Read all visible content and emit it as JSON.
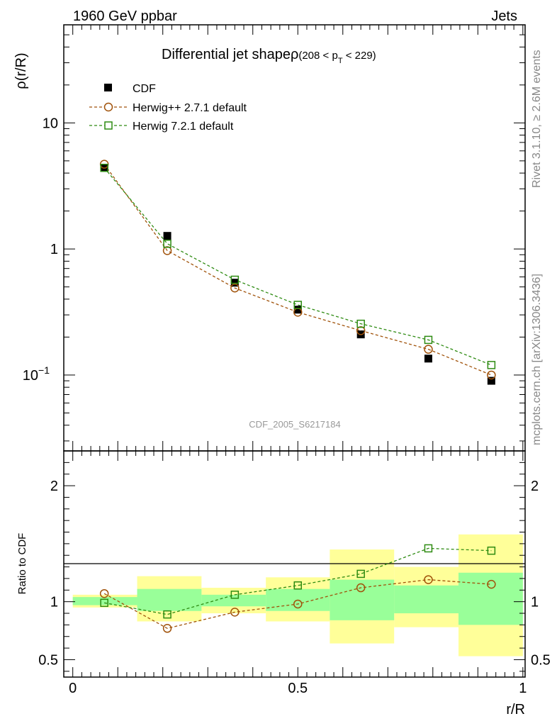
{
  "header": {
    "left": "1960 GeV ppbar",
    "right": "Jets"
  },
  "side_labels": {
    "rivet": "Rivet 3.1.10, ≥ 2.6M events",
    "mcplots": "mcplots.cern.ch [arXiv:1306.3436]"
  },
  "watermark": "CDF_2005_S6217184",
  "colors": {
    "data": "#000000",
    "herwigpp": "#a0520a",
    "herwig7": "#2e8b12",
    "band_inner": "#99ff99",
    "band_outer": "#ffff99"
  },
  "chart_data": [
    {
      "type": "scatter",
      "title": "Differential jet shapeρ",
      "title_suffix": "(208 < p",
      "title_sub": "T",
      "title_end": " < 229)",
      "ylabel": "ρ(r/R)",
      "yscale": "log",
      "ylim": [
        0.025,
        60
      ],
      "xlim": [
        -0.02,
        1.005
      ],
      "yticks": [
        {
          "value": 10,
          "label": "10"
        },
        {
          "value": 1,
          "label": "1"
        },
        {
          "value": 0.1,
          "label": "10",
          "sup": "−1"
        }
      ],
      "legend_position": "top-left",
      "legend": [
        {
          "label": "CDF",
          "marker": "filled-square"
        },
        {
          "label": "Herwig++ 2.7.1 default",
          "marker": "open-circle"
        },
        {
          "label": "Herwig 7.2.1 default",
          "marker": "open-square"
        }
      ],
      "x": [
        0.07,
        0.21,
        0.36,
        0.5,
        0.64,
        0.79,
        0.93
      ],
      "series": [
        {
          "name": "CDF",
          "values": [
            4.4,
            1.27,
            0.54,
            0.33,
            0.21,
            0.135,
            0.09
          ]
        },
        {
          "name": "Herwig++ 2.7.1 default",
          "values": [
            4.7,
            0.97,
            0.49,
            0.315,
            0.225,
            0.16,
            0.1
          ]
        },
        {
          "name": "Herwig 7.2.1 default",
          "values": [
            4.4,
            1.1,
            0.57,
            0.36,
            0.255,
            0.19,
            0.12
          ]
        }
      ]
    },
    {
      "type": "scatter",
      "ylabel": "Ratio to CDF",
      "xlabel": "r/R",
      "ylim": [
        0.35,
        2.3
      ],
      "xlim": [
        -0.02,
        1.005
      ],
      "yticks": [
        {
          "value": 2,
          "label": "2"
        },
        {
          "value": 1,
          "label": "1"
        },
        {
          "value": 0.5,
          "label": "0.5"
        }
      ],
      "xticks": [
        {
          "value": 0,
          "label": "0"
        },
        {
          "value": 0.5,
          "label": "0.5"
        },
        {
          "value": 1,
          "label": "1"
        }
      ],
      "bins": [
        {
          "lo": 0.0,
          "hi": 0.143,
          "inner": [
            0.97,
            1.04
          ],
          "outer": [
            0.95,
            1.06
          ]
        },
        {
          "lo": 0.143,
          "hi": 0.286,
          "inner": [
            0.92,
            1.11
          ],
          "outer": [
            0.83,
            1.22
          ]
        },
        {
          "lo": 0.286,
          "hi": 0.429,
          "inner": [
            0.96,
            1.06
          ],
          "outer": [
            0.9,
            1.12
          ]
        },
        {
          "lo": 0.429,
          "hi": 0.571,
          "inner": [
            0.92,
            1.11
          ],
          "outer": [
            0.83,
            1.21
          ]
        },
        {
          "lo": 0.571,
          "hi": 0.714,
          "inner": [
            0.84,
            1.19
          ],
          "outer": [
            0.64,
            1.45
          ]
        },
        {
          "lo": 0.714,
          "hi": 0.857,
          "inner": [
            0.9,
            1.14
          ],
          "outer": [
            0.78,
            1.3
          ]
        },
        {
          "lo": 0.857,
          "hi": 1.0,
          "inner": [
            0.8,
            1.25
          ],
          "outer": [
            0.53,
            1.58
          ]
        }
      ],
      "x": [
        0.07,
        0.21,
        0.36,
        0.5,
        0.64,
        0.79,
        0.93
      ],
      "series": [
        {
          "name": "Herwig++ 2.7.1 default",
          "values": [
            1.07,
            0.77,
            0.91,
            0.98,
            1.12,
            1.19,
            1.15
          ]
        },
        {
          "name": "Herwig 7.2.1 default",
          "values": [
            0.99,
            0.89,
            1.06,
            1.14,
            1.24,
            1.46,
            1.44
          ]
        }
      ]
    }
  ]
}
